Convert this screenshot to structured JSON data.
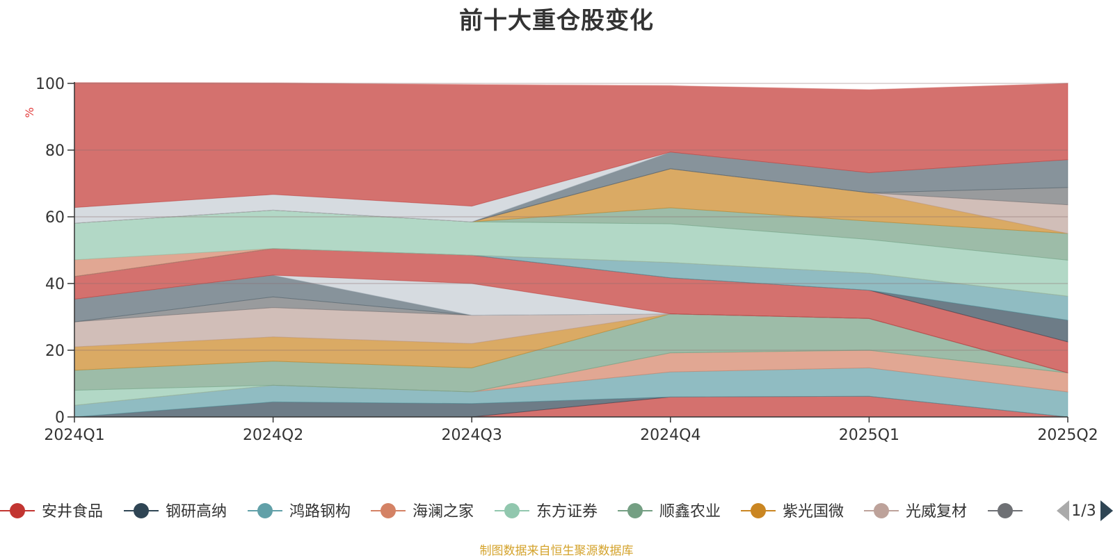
{
  "chart_data": {
    "type": "area",
    "stacked": true,
    "title": "前十大重仓股变化",
    "ylabel": "%",
    "ylim": [
      0,
      100
    ],
    "yticks": [
      0,
      20,
      40,
      60,
      80,
      100
    ],
    "x": [
      "2024Q1",
      "2024Q2",
      "2024Q3",
      "2024Q4",
      "2025Q1",
      "2025Q2"
    ],
    "grid": true,
    "legend_position": "bottom",
    "source_note": "制图数据来自恒生聚源数据库",
    "legend_page": "1/3",
    "series": [
      {
        "name": "安井食品",
        "color": "#c23531",
        "values": [
          0,
          0,
          0,
          6.0,
          6.2,
          0
        ]
      },
      {
        "name": "钢研高纳",
        "color": "#2f4554",
        "values": [
          0,
          4.5,
          4.0,
          0,
          0,
          0
        ]
      },
      {
        "name": "鸿路钢构",
        "color": "#61a0a8",
        "values": [
          3.5,
          5.0,
          3.5,
          7.5,
          8.5,
          7.5
        ]
      },
      {
        "name": "海澜之家",
        "color": "#d48265",
        "values": [
          0,
          0,
          0,
          5.7,
          5.3,
          5.7
        ]
      },
      {
        "name": "东方证券",
        "color": "#91c7ae",
        "values": [
          4.5,
          0,
          0,
          0,
          0,
          0
        ]
      },
      {
        "name": "顺鑫农业",
        "color": "#749f83",
        "values": [
          6.0,
          7.2,
          7.2,
          11.7,
          9.5,
          0
        ]
      },
      {
        "name": "紫光国微",
        "color": "#ca8622",
        "values": [
          7.0,
          7.3,
          7.3,
          0,
          0,
          0
        ]
      },
      {
        "name": "光威复材",
        "color": "#bda29a",
        "values": [
          7.5,
          8.8,
          8.5,
          0,
          0,
          0
        ]
      },
      {
        "name": "",
        "color": "#6e7074",
        "values": [
          0,
          3.2,
          0,
          0,
          0,
          0
        ]
      },
      {
        "name": "",
        "color": "#546570",
        "values": [
          6.8,
          6.5,
          0,
          0,
          0,
          0
        ]
      },
      {
        "name": "",
        "color": "#c4ccd3",
        "values": [
          0,
          0,
          9.5,
          0,
          0,
          0
        ]
      },
      {
        "name": "",
        "color": "#c23531",
        "values": [
          6.8,
          8.0,
          8.5,
          10.8,
          8.5,
          9.3
        ]
      },
      {
        "name": "",
        "color": "#2f4554",
        "values": [
          0,
          0,
          0,
          0,
          0,
          6.5
        ]
      },
      {
        "name": "",
        "color": "#61a0a8",
        "values": [
          0,
          0,
          0,
          4.6,
          5.1,
          7.2
        ]
      },
      {
        "name": "",
        "color": "#d48265",
        "values": [
          5.0,
          0,
          0,
          0,
          0,
          0
        ]
      },
      {
        "name": "",
        "color": "#91c7ae",
        "values": [
          11.0,
          11.5,
          10.0,
          11.6,
          10.1,
          10.8
        ]
      },
      {
        "name": "",
        "color": "#749f83",
        "values": [
          0,
          0,
          0,
          4.8,
          5.5,
          8.0
        ]
      },
      {
        "name": "",
        "color": "#ca8622",
        "values": [
          0,
          0,
          0,
          11.7,
          8.5,
          0
        ]
      },
      {
        "name": "",
        "color": "#bda29a",
        "values": [
          0,
          0,
          0,
          0,
          0,
          8.6
        ]
      },
      {
        "name": "",
        "color": "#6e7074",
        "values": [
          0,
          0,
          0,
          0,
          0,
          5.2
        ]
      },
      {
        "name": "",
        "color": "#546570",
        "values": [
          0,
          0,
          0,
          5.0,
          6.0,
          8.3
        ]
      },
      {
        "name": "",
        "color": "#c4ccd3",
        "values": [
          4.7,
          4.7,
          4.7,
          0,
          0,
          0
        ]
      },
      {
        "name": "",
        "color": "#c23531",
        "values": [
          37.5,
          33.5,
          36.5,
          20.0,
          25.0,
          23.0
        ]
      },
      {
        "name": "",
        "color": "#ffffff",
        "values": [
          0,
          0,
          0,
          0,
          1.0,
          0
        ]
      }
    ]
  }
}
